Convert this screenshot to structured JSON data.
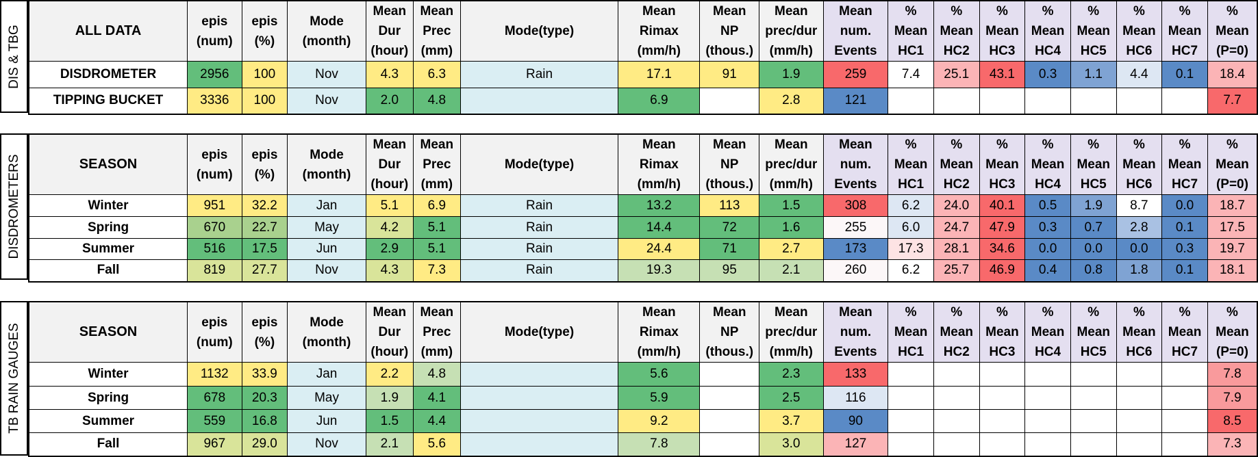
{
  "columns": [
    "epis (num)",
    "epis (%)",
    "Mode (month)",
    "Mean Dur (hour)",
    "Mean Prec (mm)",
    "Mode(type)",
    "Mean Rimax (mm/h)",
    "Mean NP (thous.)",
    "Mean prec/dur (mm/h)",
    "Mean num. Events",
    "% Mean HC1",
    "% Mean HC2",
    "% Mean HC3",
    "% Mean HC4",
    "% Mean HC5",
    "% Mean HC6",
    "% Mean HC7",
    "% Mean (P=0)"
  ],
  "header_lines": [
    [
      "epis",
      "(num)"
    ],
    [
      "epis",
      "(%)"
    ],
    [
      "Mode",
      "(month)"
    ],
    [
      "Mean",
      "Dur",
      "(hour)"
    ],
    [
      "Mean",
      "Prec",
      "(mm)"
    ],
    [
      "Mode(type)"
    ],
    [
      "Mean",
      "Rimax",
      "(mm/h)"
    ],
    [
      "Mean",
      "NP",
      "(thous.)"
    ],
    [
      "Mean",
      "prec/dur",
      "(mm/h)"
    ],
    [
      "Mean",
      "num.",
      "Events"
    ],
    [
      "%",
      "Mean",
      "HC1"
    ],
    [
      "%",
      "Mean",
      "HC2"
    ],
    [
      "%",
      "Mean",
      "HC3"
    ],
    [
      "%",
      "Mean",
      "HC4"
    ],
    [
      "%",
      "Mean",
      "HC5"
    ],
    [
      "%",
      "Mean",
      "HC6"
    ],
    [
      "%",
      "Mean",
      "HC7"
    ],
    [
      "%",
      "Mean",
      "(P=0)"
    ]
  ],
  "colors": {
    "green": "#63be7b",
    "lightgreen": "#a9d18e",
    "palegreen": "#c6e0b4",
    "yellowgreen": "#d9e49a",
    "yellow": "#ffeb84",
    "lightblue": "#daeef3",
    "red": "#f8696b",
    "pink": "#fbb4b6",
    "salmon": "#f99a9c",
    "blush": "#fde3e4",
    "nearwhite": "#fcf7f8",
    "blue": "#5a8ac6",
    "midblue": "#7fa3d3",
    "paleblue": "#a9c1e3",
    "faintblue": "#dde7f3",
    "white": "#ffffff",
    "header": "#f2f2f2",
    "lavender": "#e4dff0"
  },
  "blocks": [
    {
      "side_label": "DIS & TBG",
      "first_header": "ALL DATA",
      "rows": [
        {
          "label": "DISDROMETER",
          "cells": [
            {
              "v": "2956",
              "c": "green"
            },
            {
              "v": "100",
              "c": "yellow"
            },
            {
              "v": "Nov",
              "c": "lightblue"
            },
            {
              "v": "4.3",
              "c": "yellow"
            },
            {
              "v": "6.3",
              "c": "yellow"
            },
            {
              "v": "Rain",
              "c": "lightblue"
            },
            {
              "v": "17.1",
              "c": "yellow"
            },
            {
              "v": "91",
              "c": "yellow"
            },
            {
              "v": "1.9",
              "c": "green"
            },
            {
              "v": "259",
              "c": "red"
            },
            {
              "v": "7.4",
              "c": "white"
            },
            {
              "v": "25.1",
              "c": "pink"
            },
            {
              "v": "43.1",
              "c": "red"
            },
            {
              "v": "0.3",
              "c": "blue"
            },
            {
              "v": "1.1",
              "c": "midblue"
            },
            {
              "v": "4.4",
              "c": "faintblue"
            },
            {
              "v": "0.1",
              "c": "blue"
            },
            {
              "v": "18.4",
              "c": "pink"
            }
          ]
        },
        {
          "label": "TIPPING BUCKET",
          "cells": [
            {
              "v": "3336",
              "c": "yellow"
            },
            {
              "v": "100",
              "c": "yellow"
            },
            {
              "v": "Nov",
              "c": "lightblue"
            },
            {
              "v": "2.0",
              "c": "green"
            },
            {
              "v": "4.8",
              "c": "green"
            },
            {
              "v": "",
              "c": "lightblue"
            },
            {
              "v": "6.9",
              "c": "green"
            },
            {
              "v": "",
              "c": "white"
            },
            {
              "v": "2.8",
              "c": "yellow"
            },
            {
              "v": "121",
              "c": "blue"
            },
            {
              "v": "",
              "c": "white"
            },
            {
              "v": "",
              "c": "white"
            },
            {
              "v": "",
              "c": "white"
            },
            {
              "v": "",
              "c": "white"
            },
            {
              "v": "",
              "c": "white"
            },
            {
              "v": "",
              "c": "white"
            },
            {
              "v": "",
              "c": "white"
            },
            {
              "v": "7.7",
              "c": "red"
            }
          ]
        }
      ]
    },
    {
      "side_label": "DISDROMETERS",
      "first_header": "SEASON",
      "rows": [
        {
          "label": "Winter",
          "cells": [
            {
              "v": "951",
              "c": "yellow"
            },
            {
              "v": "32.2",
              "c": "yellow"
            },
            {
              "v": "Jan",
              "c": "lightblue"
            },
            {
              "v": "5.1",
              "c": "yellow"
            },
            {
              "v": "6.9",
              "c": "yellow"
            },
            {
              "v": "Rain",
              "c": "lightblue"
            },
            {
              "v": "13.2",
              "c": "green"
            },
            {
              "v": "113",
              "c": "yellow"
            },
            {
              "v": "1.5",
              "c": "green"
            },
            {
              "v": "308",
              "c": "red"
            },
            {
              "v": "6.2",
              "c": "faintblue"
            },
            {
              "v": "24.0",
              "c": "pink"
            },
            {
              "v": "40.1",
              "c": "red"
            },
            {
              "v": "0.5",
              "c": "blue"
            },
            {
              "v": "1.9",
              "c": "midblue"
            },
            {
              "v": "8.7",
              "c": "white"
            },
            {
              "v": "0.0",
              "c": "blue"
            },
            {
              "v": "18.7",
              "c": "pink"
            }
          ]
        },
        {
          "label": "Spring",
          "cells": [
            {
              "v": "670",
              "c": "lightgreen"
            },
            {
              "v": "22.7",
              "c": "lightgreen"
            },
            {
              "v": "May",
              "c": "lightblue"
            },
            {
              "v": "4.2",
              "c": "yellowgreen"
            },
            {
              "v": "5.1",
              "c": "green"
            },
            {
              "v": "Rain",
              "c": "lightblue"
            },
            {
              "v": "14.4",
              "c": "green"
            },
            {
              "v": "72",
              "c": "green"
            },
            {
              "v": "1.6",
              "c": "green"
            },
            {
              "v": "255",
              "c": "nearwhite"
            },
            {
              "v": "6.0",
              "c": "faintblue"
            },
            {
              "v": "24.7",
              "c": "pink"
            },
            {
              "v": "47.9",
              "c": "red"
            },
            {
              "v": "0.3",
              "c": "blue"
            },
            {
              "v": "0.7",
              "c": "blue"
            },
            {
              "v": "2.8",
              "c": "paleblue"
            },
            {
              "v": "0.1",
              "c": "blue"
            },
            {
              "v": "17.5",
              "c": "pink"
            }
          ]
        },
        {
          "label": "Summer",
          "cells": [
            {
              "v": "516",
              "c": "green"
            },
            {
              "v": "17.5",
              "c": "green"
            },
            {
              "v": "Jun",
              "c": "lightblue"
            },
            {
              "v": "2.9",
              "c": "green"
            },
            {
              "v": "5.1",
              "c": "green"
            },
            {
              "v": "Rain",
              "c": "lightblue"
            },
            {
              "v": "24.4",
              "c": "yellow"
            },
            {
              "v": "71",
              "c": "green"
            },
            {
              "v": "2.7",
              "c": "yellow"
            },
            {
              "v": "173",
              "c": "blue"
            },
            {
              "v": "17.3",
              "c": "blush"
            },
            {
              "v": "28.1",
              "c": "pink"
            },
            {
              "v": "34.6",
              "c": "red"
            },
            {
              "v": "0.0",
              "c": "blue"
            },
            {
              "v": "0.0",
              "c": "blue"
            },
            {
              "v": "0.0",
              "c": "blue"
            },
            {
              "v": "0.3",
              "c": "blue"
            },
            {
              "v": "19.7",
              "c": "pink"
            }
          ]
        },
        {
          "label": "Fall",
          "cells": [
            {
              "v": "819",
              "c": "yellowgreen"
            },
            {
              "v": "27.7",
              "c": "yellowgreen"
            },
            {
              "v": "Nov",
              "c": "lightblue"
            },
            {
              "v": "4.3",
              "c": "yellowgreen"
            },
            {
              "v": "7.3",
              "c": "yellow"
            },
            {
              "v": "Rain",
              "c": "lightblue"
            },
            {
              "v": "19.3",
              "c": "palegreen"
            },
            {
              "v": "95",
              "c": "palegreen"
            },
            {
              "v": "2.1",
              "c": "palegreen"
            },
            {
              "v": "260",
              "c": "nearwhite"
            },
            {
              "v": "6.2",
              "c": "white"
            },
            {
              "v": "25.7",
              "c": "pink"
            },
            {
              "v": "46.9",
              "c": "red"
            },
            {
              "v": "0.4",
              "c": "blue"
            },
            {
              "v": "0.8",
              "c": "blue"
            },
            {
              "v": "1.8",
              "c": "midblue"
            },
            {
              "v": "0.1",
              "c": "blue"
            },
            {
              "v": "18.1",
              "c": "pink"
            }
          ]
        }
      ]
    },
    {
      "side_label": "TB RAIN GAUGES",
      "first_header": "SEASON",
      "rows": [
        {
          "label": "Winter",
          "cells": [
            {
              "v": "1132",
              "c": "yellow"
            },
            {
              "v": "33.9",
              "c": "yellow"
            },
            {
              "v": "Jan",
              "c": "lightblue"
            },
            {
              "v": "2.2",
              "c": "yellow"
            },
            {
              "v": "4.8",
              "c": "palegreen"
            },
            {
              "v": "",
              "c": "lightblue"
            },
            {
              "v": "5.6",
              "c": "green"
            },
            {
              "v": "",
              "c": "white"
            },
            {
              "v": "2.3",
              "c": "green"
            },
            {
              "v": "133",
              "c": "red"
            },
            {
              "v": "",
              "c": "white"
            },
            {
              "v": "",
              "c": "white"
            },
            {
              "v": "",
              "c": "white"
            },
            {
              "v": "",
              "c": "white"
            },
            {
              "v": "",
              "c": "white"
            },
            {
              "v": "",
              "c": "white"
            },
            {
              "v": "",
              "c": "white"
            },
            {
              "v": "7.8",
              "c": "salmon"
            }
          ]
        },
        {
          "label": "Spring",
          "cells": [
            {
              "v": "678",
              "c": "green"
            },
            {
              "v": "20.3",
              "c": "green"
            },
            {
              "v": "May",
              "c": "lightblue"
            },
            {
              "v": "1.9",
              "c": "palegreen"
            },
            {
              "v": "4.1",
              "c": "green"
            },
            {
              "v": "",
              "c": "lightblue"
            },
            {
              "v": "5.9",
              "c": "green"
            },
            {
              "v": "",
              "c": "white"
            },
            {
              "v": "2.5",
              "c": "green"
            },
            {
              "v": "116",
              "c": "faintblue"
            },
            {
              "v": "",
              "c": "white"
            },
            {
              "v": "",
              "c": "white"
            },
            {
              "v": "",
              "c": "white"
            },
            {
              "v": "",
              "c": "white"
            },
            {
              "v": "",
              "c": "white"
            },
            {
              "v": "",
              "c": "white"
            },
            {
              "v": "",
              "c": "white"
            },
            {
              "v": "7.9",
              "c": "salmon"
            }
          ]
        },
        {
          "label": "Summer",
          "cells": [
            {
              "v": "559",
              "c": "green"
            },
            {
              "v": "16.8",
              "c": "green"
            },
            {
              "v": "Jun",
              "c": "lightblue"
            },
            {
              "v": "1.5",
              "c": "green"
            },
            {
              "v": "4.4",
              "c": "green"
            },
            {
              "v": "",
              "c": "lightblue"
            },
            {
              "v": "9.2",
              "c": "yellow"
            },
            {
              "v": "",
              "c": "white"
            },
            {
              "v": "3.7",
              "c": "yellow"
            },
            {
              "v": "90",
              "c": "blue"
            },
            {
              "v": "",
              "c": "white"
            },
            {
              "v": "",
              "c": "white"
            },
            {
              "v": "",
              "c": "white"
            },
            {
              "v": "",
              "c": "white"
            },
            {
              "v": "",
              "c": "white"
            },
            {
              "v": "",
              "c": "white"
            },
            {
              "v": "",
              "c": "white"
            },
            {
              "v": "8.5",
              "c": "red"
            }
          ]
        },
        {
          "label": "Fall",
          "cells": [
            {
              "v": "967",
              "c": "yellowgreen"
            },
            {
              "v": "29.0",
              "c": "yellowgreen"
            },
            {
              "v": "Nov",
              "c": "lightblue"
            },
            {
              "v": "2.1",
              "c": "palegreen"
            },
            {
              "v": "5.6",
              "c": "yellow"
            },
            {
              "v": "",
              "c": "lightblue"
            },
            {
              "v": "7.8",
              "c": "palegreen"
            },
            {
              "v": "",
              "c": "white"
            },
            {
              "v": "3.0",
              "c": "yellowgreen"
            },
            {
              "v": "127",
              "c": "pink"
            },
            {
              "v": "",
              "c": "white"
            },
            {
              "v": "",
              "c": "white"
            },
            {
              "v": "",
              "c": "white"
            },
            {
              "v": "",
              "c": "white"
            },
            {
              "v": "",
              "c": "white"
            },
            {
              "v": "",
              "c": "white"
            },
            {
              "v": "",
              "c": "white"
            },
            {
              "v": "7.3",
              "c": "pink"
            }
          ]
        }
      ]
    }
  ]
}
